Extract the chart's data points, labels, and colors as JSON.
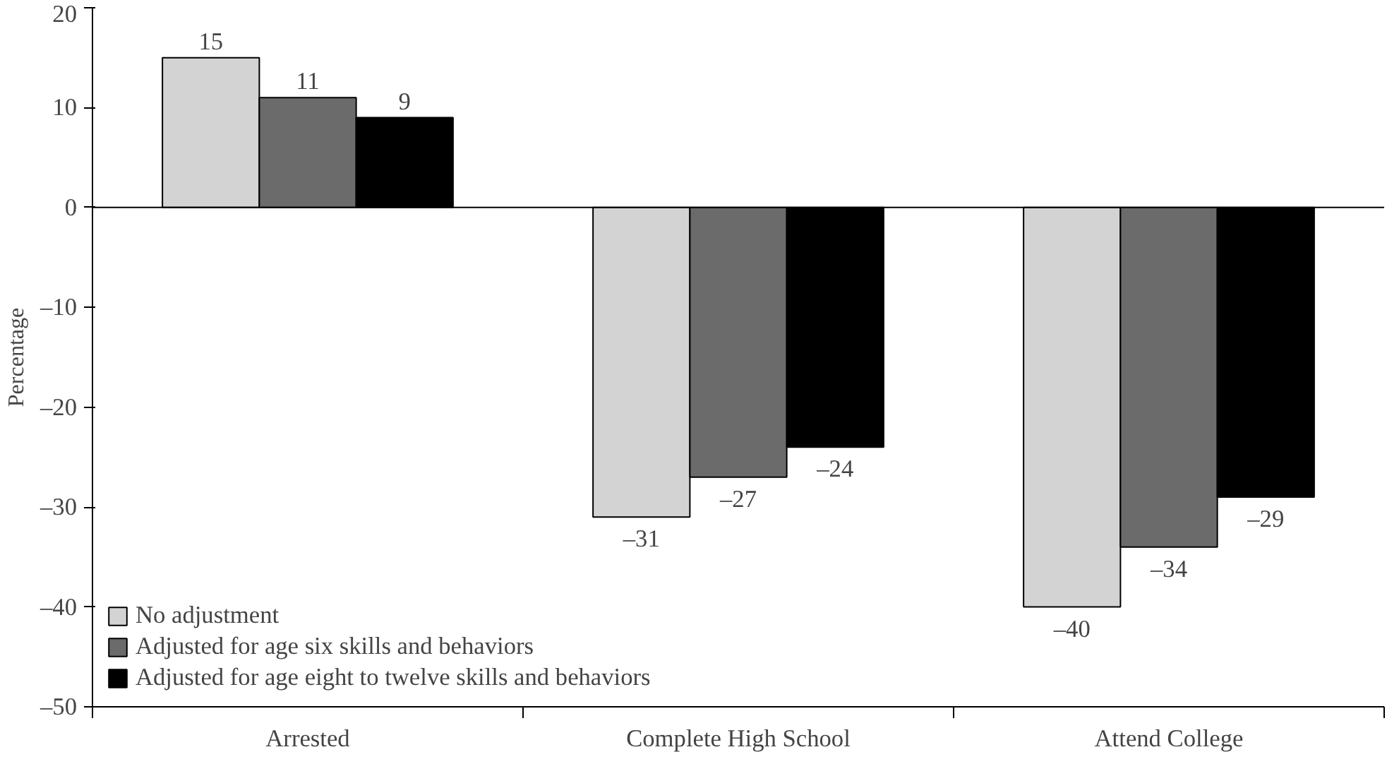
{
  "chart_data": {
    "type": "bar",
    "ylabel": "Percentage",
    "categories": [
      "Arrested",
      "Complete High School",
      "Attend College"
    ],
    "series": [
      {
        "name": "No adjustment",
        "color": "#d3d3d3",
        "values": [
          15,
          -31,
          -40
        ],
        "value_labels": [
          "15",
          "–31",
          "–40"
        ]
      },
      {
        "name": "Adjusted for age six skills and behaviors",
        "color": "#6b6b6b",
        "values": [
          11,
          -27,
          -34
        ],
        "value_labels": [
          "11",
          "–27",
          "–34"
        ]
      },
      {
        "name": "Adjusted for age eight to twelve skills and behaviors",
        "color": "#000000",
        "values": [
          9,
          -24,
          -29
        ],
        "value_labels": [
          "9",
          "–24",
          "–29"
        ]
      }
    ],
    "ylim": [
      -50,
      20
    ],
    "yticks": [
      {
        "value": -50,
        "label": "–50"
      },
      {
        "value": -40,
        "label": "–40"
      },
      {
        "value": -30,
        "label": "–30"
      },
      {
        "value": -20,
        "label": "–20"
      },
      {
        "value": -10,
        "label": "–10"
      },
      0,
      10,
      20
    ],
    "ref_lines": [
      {
        "axis": "y",
        "value": 0,
        "color": "#000000"
      }
    ],
    "grid": false,
    "legend": "bottom left"
  }
}
